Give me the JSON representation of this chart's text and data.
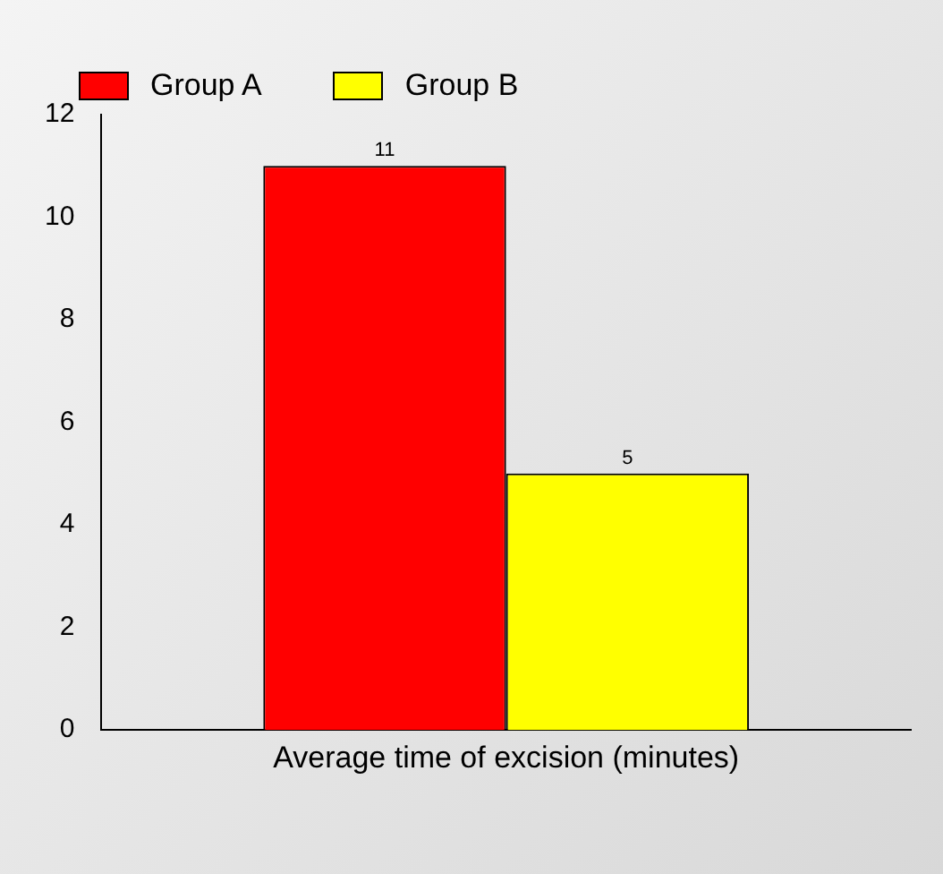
{
  "chart_data": {
    "type": "bar",
    "categories": [
      "Average time of excision (minutes)"
    ],
    "series": [
      {
        "name": "Group A",
        "color": "#ff0000",
        "values": [
          11
        ]
      },
      {
        "name": "Group B",
        "color": "#ffff00",
        "values": [
          5
        ]
      }
    ],
    "ylim": [
      0,
      12
    ],
    "yticks": [
      0,
      2,
      4,
      6,
      8,
      10,
      12
    ],
    "grid": false,
    "legend": "top left",
    "data_labels": true
  }
}
